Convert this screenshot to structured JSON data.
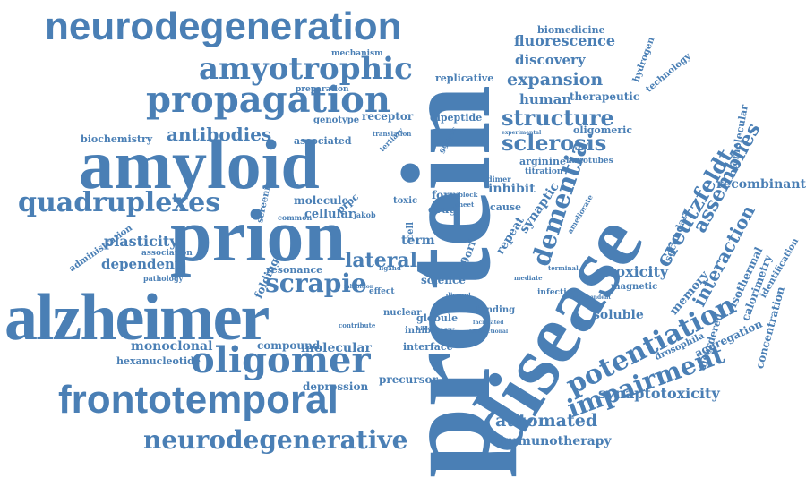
{
  "accent_color": "#4a7fb5",
  "words": {
    "protein": "protein",
    "disease": "disease",
    "alzheimer": "alzheimer",
    "amyloid": "amyloid",
    "prion": "prion",
    "neurodegeneration": "neurodegeneration",
    "frontotemporal": "frontotemporal",
    "oligomer": "oligomer",
    "amyotrophic": "amyotrophic",
    "propagation": "propagation",
    "quadruplexes": "quadruplexes",
    "neurodegenerative": "neurodegenerative",
    "dementia": "dementia",
    "potentiation": "potentiation",
    "structure": "structure",
    "sclerosis": "sclerosis",
    "expansion": "expansion",
    "scrapie": "scrapie",
    "antibodies": "antibodies",
    "impairment": "impairment",
    "creutzfeldt": "creutzfeldt",
    "assemblies": "assemblies",
    "interaction": "interaction",
    "toxicity": "toxicity",
    "lateral": "lateral",
    "automated": "automated",
    "immunotherapy": "immunotherapy",
    "synaptotoxicity": "synaptotoxicity",
    "fluorescence": "fluorescence",
    "discovery": "discovery",
    "human": "human",
    "therapeutic": "therapeutic",
    "biomedicine": "biomedicine",
    "hydrogen": "hydrogen",
    "technology": "technology",
    "replicative": "replicative",
    "dipeptide": "dipeptide",
    "oligomeric": "oligomeric",
    "biomolecular": "biomolecular",
    "recombinant": "recombinant",
    "secondary": "secondary",
    "isothermal": "isothermal",
    "calorimetry": "calorimetry",
    "identification": "identification",
    "concentration": "concentration",
    "disordered": "disordered",
    "aggregation": "aggregation",
    "memory": "memory",
    "soluble": "soluble",
    "magnetic": "magnetic",
    "drosophila": "drosophila",
    "plasticity": "plasticity",
    "dependent": "dependent",
    "monoclonal": "monoclonal",
    "hexanucleotide": "hexanucleotide",
    "compound": "compound",
    "molecular": "molecular",
    "depression": "depression",
    "precursor": "precursor",
    "interface": "interface",
    "inhibitory": "inhibitory",
    "binding": "binding",
    "science": "science",
    "globule": "globule",
    "nuclear": "nuclear",
    "resonance": "resonance",
    "folding": "folding",
    "screening": "screening",
    "cellular": "cellular",
    "molecule": "molecule",
    "associated": "associated",
    "receptor": "receptor",
    "genotype": "genotype",
    "preparation": "preparation",
    "mechanism": "mechanism",
    "biochemistry": "biochemistry",
    "administration": "administration",
    "association": "association",
    "pathology": "pathology",
    "term": "term",
    "form": "form",
    "drug": "drug",
    "toxic": "toxic",
    "inhibit": "inhibit",
    "cause": "cause",
    "arginine": "arginine",
    "titration": "titration",
    "nanotubes": "nanotubes",
    "repeat": "repeat",
    "synaptic": "synaptic",
    "c9orf": "c9orf",
    "prpc": "prpc",
    "jakob": "jakob",
    "common": "common",
    "dimer": "dimer",
    "ggggcc": "ggggcc",
    "tertiary": "tertiary",
    "translation": "translation",
    "infection": "infection",
    "effect": "effect",
    "terminal": "terminal",
    "ameliorate": "ameliorate",
    "mediate": "mediate",
    "contribute": "contribute",
    "cell": "cell",
    "block": "block",
    "sheet": "sheet",
    "ligand": "ligand",
    "disrupt": "disrupt",
    "inhibition": "inhibition",
    "bidirectional": "bidirectional",
    "facilitated": "facilitated",
    "independent": "independent",
    "experimental": "experimental",
    "biology": "biology"
  }
}
